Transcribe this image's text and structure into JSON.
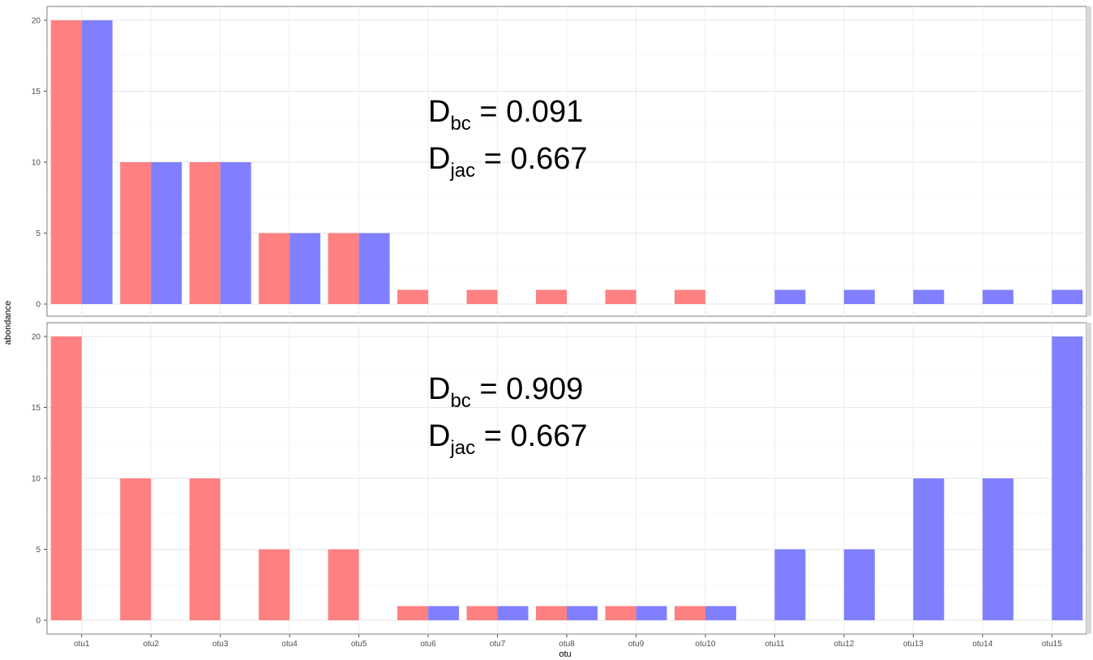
{
  "chart_data": {
    "type": "bar",
    "x_label": "otu",
    "y_label": "abondance",
    "categories": [
      "otu1",
      "otu2",
      "otu3",
      "otu4",
      "otu5",
      "otu6",
      "otu7",
      "otu8",
      "otu9",
      "otu10",
      "otu11",
      "otu12",
      "otu13",
      "otu14",
      "otu15"
    ],
    "y_ticks": [
      0,
      5,
      10,
      15,
      20
    ],
    "ylim": [
      0,
      20.5
    ],
    "grid": true,
    "colors": {
      "series_1": "#ff8080",
      "series_2": "#8080ff"
    },
    "panels": [
      {
        "series": [
          {
            "values": [
              20,
              10,
              10,
              5,
              5,
              1,
              1,
              1,
              1,
              1,
              0,
              0,
              0,
              0,
              0
            ]
          },
          {
            "values": [
              20,
              10,
              10,
              5,
              5,
              0,
              0,
              0,
              0,
              0,
              1,
              1,
              1,
              1,
              1
            ]
          }
        ],
        "annotation": {
          "bc": {
            "main": "D",
            "sub": "bc",
            "rest": " = 0.091"
          },
          "jac": {
            "main": "D",
            "sub": "jac",
            "rest": " = 0.667"
          }
        }
      },
      {
        "series": [
          {
            "values": [
              20,
              10,
              10,
              5,
              5,
              1,
              1,
              1,
              1,
              1,
              0,
              0,
              0,
              0,
              0
            ]
          },
          {
            "values": [
              0,
              0,
              0,
              0,
              0,
              1,
              1,
              1,
              1,
              1,
              5,
              5,
              10,
              10,
              20
            ]
          }
        ],
        "annotation": {
          "bc": {
            "main": "D",
            "sub": "bc",
            "rest": " = 0.909"
          },
          "jac": {
            "main": "D",
            "sub": "jac",
            "rest": " = 0.667"
          }
        }
      }
    ]
  }
}
